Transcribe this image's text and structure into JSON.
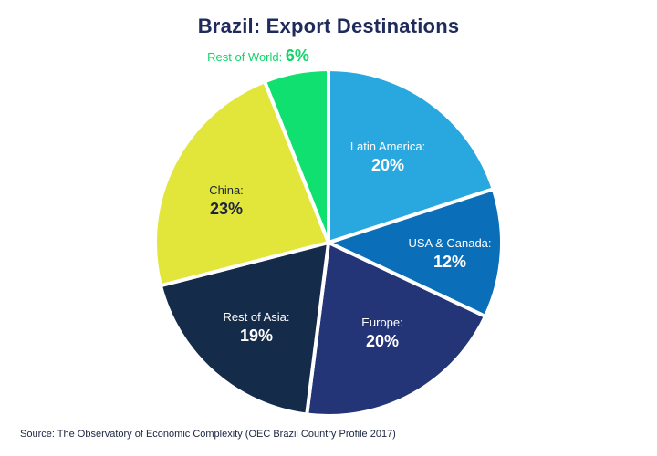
{
  "chart_data": {
    "type": "pie",
    "title": "Brazil: Export Destinations",
    "source": "Source: The Observatory of Economic Complexity (OEC Brazil Country Profile 2017)",
    "slices": [
      {
        "name": "Latin America:",
        "value": 20,
        "label": "20%",
        "color": "#29a8e0"
      },
      {
        "name": "USA & Canada:",
        "value": 12,
        "label": "12%",
        "color": "#0b6eb8"
      },
      {
        "name": "Europe:",
        "value": 20,
        "label": "20%",
        "color": "#233477"
      },
      {
        "name": "Rest of Asia:",
        "value": 19,
        "label": "19%",
        "color": "#152b4a"
      },
      {
        "name": "China:",
        "value": 23,
        "label": "23%",
        "color": "#e2e63a"
      },
      {
        "name": "Rest of World:",
        "value": 6,
        "label": "6%",
        "color": "#10e070"
      }
    ]
  }
}
